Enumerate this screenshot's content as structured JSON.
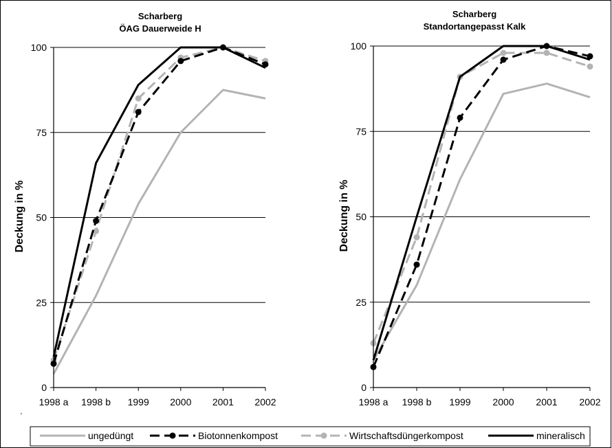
{
  "legend": [
    {
      "name": "ungedüngt",
      "color": "#b3b3b3",
      "dash": false,
      "marker": false
    },
    {
      "name": "Biotonnenkompost",
      "color": "#000000",
      "dash": true,
      "marker": true
    },
    {
      "name": "Wirtschaftsdüngerkompost",
      "color": "#b3b3b3",
      "dash": true,
      "marker": true
    },
    {
      "name": "mineralisch",
      "color": "#000000",
      "dash": false,
      "marker": false
    }
  ],
  "chart_data": [
    {
      "type": "line",
      "title": "Scharberg",
      "subtitle": "ÖAG Dauerweide H",
      "ylabel": "Deckung in %",
      "xlabel": "",
      "categories": [
        "1998 a",
        "1998 b",
        "1999",
        "2000",
        "2001",
        "2002"
      ],
      "ylim": [
        0,
        100
      ],
      "yticks": [
        0,
        25,
        50,
        75,
        100
      ],
      "grid": true,
      "series": [
        {
          "name": "ungedüngt",
          "values": [
            4,
            27,
            54,
            75,
            87.5,
            85
          ]
        },
        {
          "name": "Biotonnenkompost",
          "values": [
            7,
            49,
            81,
            96,
            100,
            95
          ]
        },
        {
          "name": "Wirtschaftsdüngerkompost",
          "values": [
            8,
            46,
            85,
            97,
            100,
            96
          ]
        },
        {
          "name": "mineralisch",
          "values": [
            9,
            66,
            89,
            100,
            100,
            94
          ]
        }
      ]
    },
    {
      "type": "line",
      "title": "Scharberg",
      "subtitle": "Standortangepasst Kalk",
      "ylabel": "Deckung in %",
      "xlabel": "",
      "categories": [
        "1998 a",
        "1998 b",
        "1999",
        "2000",
        "2001",
        "2002"
      ],
      "ylim": [
        0,
        100
      ],
      "yticks": [
        0,
        25,
        50,
        75,
        100
      ],
      "grid": true,
      "series": [
        {
          "name": "ungedüngt",
          "values": [
            8,
            30,
            61,
            86,
            89,
            85
          ]
        },
        {
          "name": "Biotonnenkompost",
          "values": [
            6,
            36,
            79,
            96,
            100,
            97
          ]
        },
        {
          "name": "Wirtschaftsdüngerkompost",
          "values": [
            13,
            44,
            91,
            98,
            98,
            94
          ]
        },
        {
          "name": "mineralisch",
          "values": [
            8,
            50,
            91,
            100,
            100,
            96
          ]
        }
      ]
    }
  ]
}
